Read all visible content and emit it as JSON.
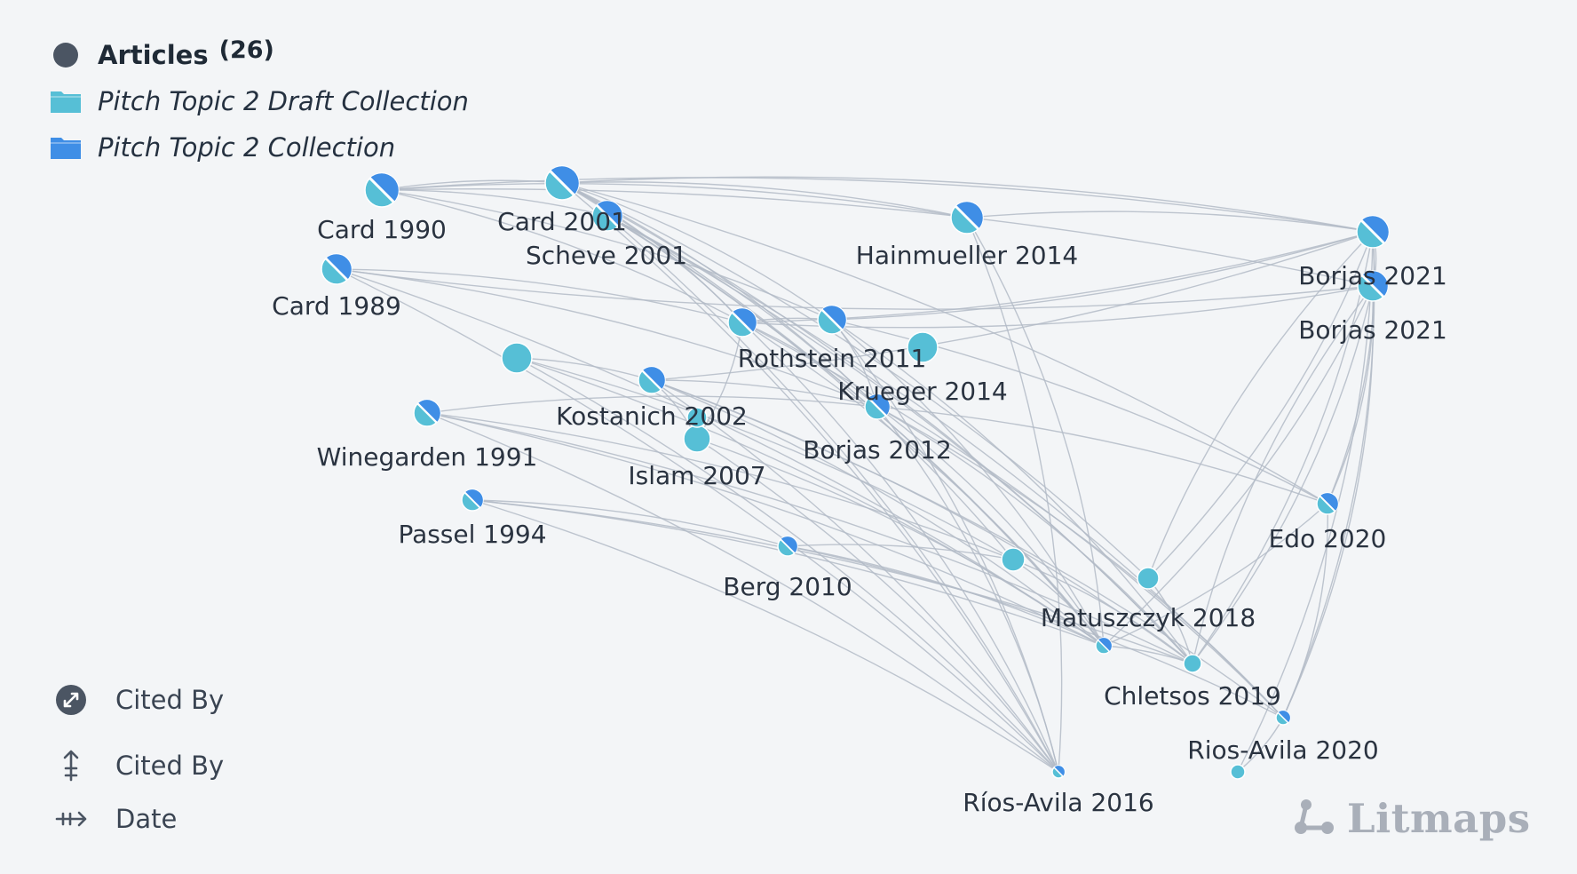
{
  "colors": {
    "background": "#f3f5f7",
    "edge": "#b3bbc7",
    "draft_collection": "#56bfd6",
    "collection": "#3f8ee6",
    "article_node": "#4b5563",
    "label": "#2a3340",
    "brand": "#a9afb9"
  },
  "legend": {
    "articles_label": "Articles",
    "articles_count": "(26)",
    "collections": [
      {
        "label": "Pitch Topic 2 Draft Collection",
        "icon": "folder-icon",
        "color": "#56bfd6"
      },
      {
        "label": "Pitch Topic 2 Collection",
        "icon": "folder-icon",
        "color": "#3f8ee6"
      }
    ]
  },
  "axes": {
    "size_label": "Cited By",
    "vertical_label": "Cited By",
    "horizontal_label": "Date"
  },
  "brand": {
    "name": "Litmaps"
  },
  "nodes": [
    {
      "id": "card1990",
      "label": "Card 1990",
      "membership": "both"
    },
    {
      "id": "card2001",
      "label": "Card 2001",
      "membership": "both"
    },
    {
      "id": "scheve2001",
      "label": "Scheve 2001",
      "membership": "both"
    },
    {
      "id": "hainmueller2014",
      "label": "Hainmueller 2014",
      "membership": "both"
    },
    {
      "id": "borjas2021a",
      "label": "Borjas 2021",
      "membership": "both"
    },
    {
      "id": "borjas2021b",
      "label": "Borjas 2021",
      "membership": "both"
    },
    {
      "id": "card1989",
      "label": "Card 1989",
      "membership": "both"
    },
    {
      "id": "rothstein2011",
      "label": "Rothstein 2011",
      "membership": "both"
    },
    {
      "id": "krueger2014_x",
      "label": "",
      "membership": "both"
    },
    {
      "id": "krueger2014",
      "label": "Krueger 2014",
      "membership": "draft"
    },
    {
      "id": "unlabeled1",
      "label": "",
      "membership": "draft"
    },
    {
      "id": "kostanich2002",
      "label": "Kostanich 2002",
      "membership": "both"
    },
    {
      "id": "winegarden1991",
      "label": "Winegarden 1991",
      "membership": "both"
    },
    {
      "id": "islam2007",
      "label": "Islam 2007",
      "membership": "draft"
    },
    {
      "id": "unlabeled2",
      "label": "",
      "membership": "draft"
    },
    {
      "id": "borjas2012",
      "label": "Borjas 2012",
      "membership": "both"
    },
    {
      "id": "passel1994",
      "label": "Passel 1994",
      "membership": "both"
    },
    {
      "id": "berg2010",
      "label": "Berg 2010",
      "membership": "both"
    },
    {
      "id": "unlabeled3",
      "label": "",
      "membership": "draft"
    },
    {
      "id": "edo2020",
      "label": "Edo 2020",
      "membership": "both"
    },
    {
      "id": "matuszczyk2018",
      "label": "Matuszczyk 2018",
      "membership": "draft"
    },
    {
      "id": "unlabeled4",
      "label": "",
      "membership": "both"
    },
    {
      "id": "chletsos2019",
      "label": "Chletsos 2019",
      "membership": "draft"
    },
    {
      "id": "riosavila2020",
      "label": "Rios-Avila 2020",
      "membership": "both"
    },
    {
      "id": "riosavila2016",
      "label": "Ríos-Avila 2016",
      "membership": "both"
    },
    {
      "id": "unlabeled5",
      "label": "",
      "membership": "draft"
    }
  ],
  "edges": [
    [
      "card1990",
      "card2001"
    ],
    [
      "card1990",
      "hainmueller2014"
    ],
    [
      "card1990",
      "borjas2021a"
    ],
    [
      "card1990",
      "borjas2021b"
    ],
    [
      "card1990",
      "rothstein2011"
    ],
    [
      "card1990",
      "krueger2014_x"
    ],
    [
      "card1990",
      "scheve2001"
    ],
    [
      "card2001",
      "hainmueller2014"
    ],
    [
      "card2001",
      "borjas2021a"
    ],
    [
      "card2001",
      "rothstein2011"
    ],
    [
      "card2001",
      "krueger2014_x"
    ],
    [
      "card2001",
      "borjas2012"
    ],
    [
      "card2001",
      "unlabeled4"
    ],
    [
      "card2001",
      "chletsos2019"
    ],
    [
      "card2001",
      "riosavila2016"
    ],
    [
      "card2001",
      "matuszczyk2018"
    ],
    [
      "card2001",
      "edo2020"
    ],
    [
      "scheve2001",
      "rothstein2011"
    ],
    [
      "scheve2001",
      "borjas2012"
    ],
    [
      "scheve2001",
      "riosavila2016"
    ],
    [
      "scheve2001",
      "unlabeled4"
    ],
    [
      "scheve2001",
      "riosavila2020"
    ],
    [
      "scheve2001",
      "unlabeled3"
    ],
    [
      "scheve2001",
      "chletsos2019"
    ],
    [
      "hainmueller2014",
      "borjas2021a"
    ],
    [
      "hainmueller2014",
      "riosavila2016"
    ],
    [
      "hainmueller2014",
      "unlabeled4"
    ],
    [
      "borjas2021a",
      "rothstein2011"
    ],
    [
      "borjas2021a",
      "krueger2014_x"
    ],
    [
      "borjas2021a",
      "kostanich2002"
    ],
    [
      "borjas2021a",
      "borjas2021b"
    ],
    [
      "borjas2021a",
      "edo2020"
    ],
    [
      "borjas2021a",
      "riosavila2020"
    ],
    [
      "borjas2021a",
      "chletsos2019"
    ],
    [
      "borjas2021a",
      "matuszczyk2018"
    ],
    [
      "borjas2021a",
      "unlabeled5"
    ],
    [
      "borjas2021b",
      "rothstein2011"
    ],
    [
      "borjas2021b",
      "unlabeled4"
    ],
    [
      "borjas2021b",
      "riosavila2020"
    ],
    [
      "borjas2021b",
      "edo2020"
    ],
    [
      "borjas2021b",
      "card1989"
    ],
    [
      "borjas2021b",
      "chletsos2019"
    ],
    [
      "card1989",
      "rothstein2011"
    ],
    [
      "card1989",
      "riosavila2016"
    ],
    [
      "card1989",
      "unlabeled4"
    ],
    [
      "card1989",
      "borjas2012"
    ],
    [
      "rothstein2011",
      "krueger2014_x"
    ],
    [
      "rothstein2011",
      "borjas2012"
    ],
    [
      "rothstein2011",
      "unlabeled4"
    ],
    [
      "rothstein2011",
      "riosavila2016"
    ],
    [
      "rothstein2011",
      "riosavila2020"
    ],
    [
      "rothstein2011",
      "islam2007"
    ],
    [
      "krueger2014_x",
      "borjas2012"
    ],
    [
      "krueger2014_x",
      "unlabeled4"
    ],
    [
      "krueger2014_x",
      "riosavila2016"
    ],
    [
      "krueger2014_x",
      "edo2020"
    ],
    [
      "krueger2014_x",
      "chletsos2019"
    ],
    [
      "unlabeled1",
      "kostanich2002"
    ],
    [
      "unlabeled1",
      "riosavila2016"
    ],
    [
      "unlabeled1",
      "unlabeled4"
    ],
    [
      "unlabeled1",
      "unlabeled3"
    ],
    [
      "kostanich2002",
      "borjas2012"
    ],
    [
      "kostanich2002",
      "unlabeled4"
    ],
    [
      "kostanich2002",
      "riosavila2016"
    ],
    [
      "kostanich2002",
      "chletsos2019"
    ],
    [
      "kostanich2002",
      "riosavila2020"
    ],
    [
      "kostanich2002",
      "islam2007"
    ],
    [
      "winegarden1991",
      "borjas2012"
    ],
    [
      "winegarden1991",
      "unlabeled4"
    ],
    [
      "winegarden1991",
      "riosavila2016"
    ],
    [
      "winegarden1991",
      "chletsos2019"
    ],
    [
      "winegarden1991",
      "unlabeled3"
    ],
    [
      "islam2007",
      "unlabeled2"
    ],
    [
      "islam2007",
      "unlabeled4"
    ],
    [
      "islam2007",
      "riosavila2016"
    ],
    [
      "borjas2012",
      "edo2020"
    ],
    [
      "borjas2012",
      "unlabeled4"
    ],
    [
      "borjas2012",
      "riosavila2016"
    ],
    [
      "borjas2012",
      "riosavila2020"
    ],
    [
      "borjas2012",
      "chletsos2019"
    ],
    [
      "passel1994",
      "berg2010"
    ],
    [
      "passel1994",
      "unlabeled4"
    ],
    [
      "passel1994",
      "riosavila2016"
    ],
    [
      "passel1994",
      "chletsos2019"
    ],
    [
      "berg2010",
      "unlabeled3"
    ],
    [
      "berg2010",
      "unlabeled4"
    ],
    [
      "berg2010",
      "riosavila2020"
    ],
    [
      "unlabeled3",
      "unlabeled4"
    ],
    [
      "unlabeled3",
      "chletsos2019"
    ],
    [
      "edo2020",
      "riosavila2020"
    ],
    [
      "edo2020",
      "unlabeled4"
    ],
    [
      "matuszczyk2018",
      "chletsos2019"
    ],
    [
      "matuszczyk2018",
      "borjas2021a"
    ],
    [
      "unlabeled4",
      "chletsos2019"
    ],
    [
      "chletsos2019",
      "borjas2021b"
    ],
    [
      "riosavila2020",
      "unlabeled5"
    ]
  ]
}
